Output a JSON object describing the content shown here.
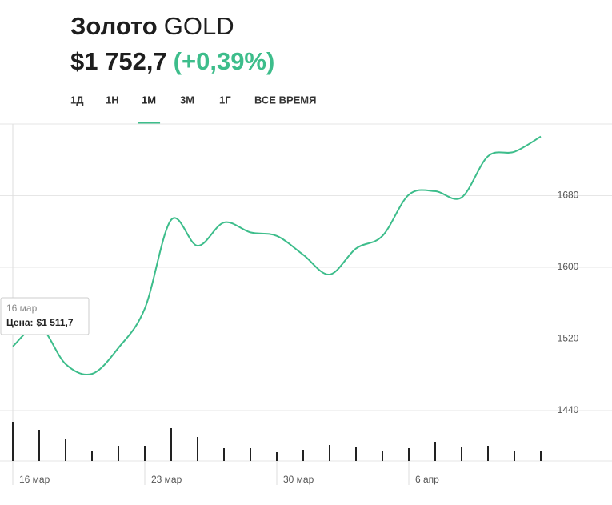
{
  "header": {
    "title": "Золото",
    "ticker": "GOLD",
    "price": "$1 752,7",
    "change": "(+0,39%)",
    "tabs": [
      "1Д",
      "1Н",
      "1М",
      "3М",
      "1Г",
      "ВСЕ ВРЕМЯ"
    ],
    "active_tab": 2
  },
  "chart_data": {
    "type": "line",
    "color": "#3dbd8b",
    "categories": [
      "16 мар",
      null,
      null,
      null,
      null,
      "23 мар",
      null,
      null,
      null,
      null,
      "30 мар",
      null,
      null,
      null,
      null,
      "6 апр",
      null,
      null,
      null,
      null,
      null
    ],
    "values": [
      1511.7,
      1534,
      1492,
      1481,
      1510,
      1554,
      1653,
      1624,
      1650,
      1639,
      1635,
      1614,
      1592,
      1621,
      1635,
      1681,
      1685,
      1678,
      1724,
      1729,
      1746
    ],
    "ylim": [
      1440,
      1760
    ],
    "yticks": [
      1440,
      1520,
      1600,
      1680
    ],
    "grid": true,
    "volume": {
      "values": [
        49,
        39,
        28,
        13,
        19,
        19,
        41,
        30,
        16,
        16,
        11,
        14,
        20,
        17,
        12,
        16,
        24,
        17,
        19,
        12,
        13
      ],
      "lim": [
        0,
        60
      ],
      "color": "#222222"
    },
    "tooltip": {
      "date": "16 мар",
      "label": "Цена:",
      "value_label": "$1 511,7",
      "index": 0
    }
  }
}
